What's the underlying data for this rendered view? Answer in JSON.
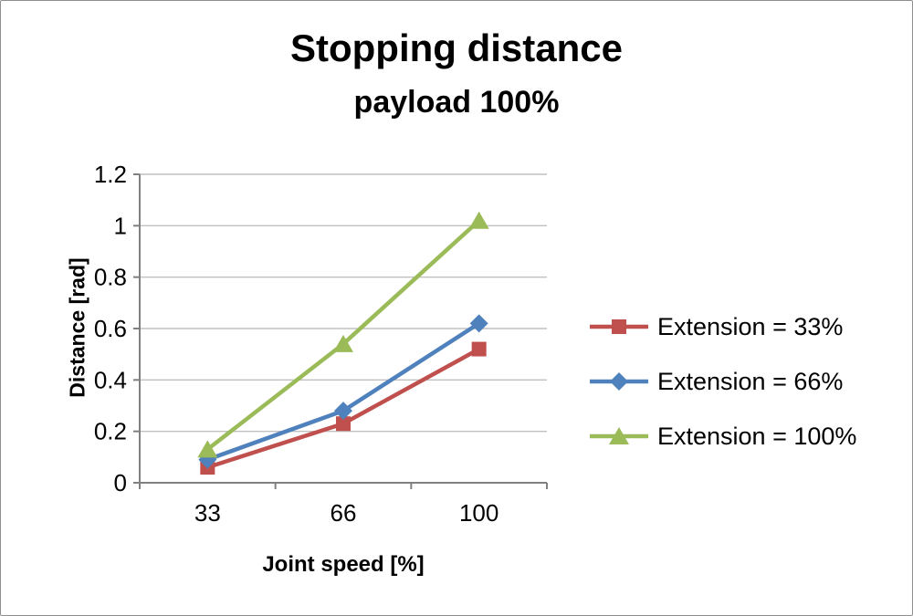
{
  "chart_data": {
    "type": "line",
    "title": "Stopping distance",
    "subtitle": "payload 100%",
    "xlabel": "Joint speed [%]",
    "ylabel": "Distance [rad]",
    "categories": [
      "33",
      "66",
      "100"
    ],
    "ylim": [
      0,
      1.2
    ],
    "ytick_step": 0.2,
    "ytick_labels": [
      "0",
      "0.2",
      "0.4",
      "0.6",
      "0.8",
      "1",
      "1.2"
    ],
    "grid": true,
    "legend_position": "right",
    "axis_color": "#808080",
    "grid_color": "#c0c0c0",
    "series": [
      {
        "name": "Extension = 33%",
        "color": "#c0504d",
        "marker": "square",
        "values": [
          0.06,
          0.23,
          0.52
        ]
      },
      {
        "name": "Extension = 66%",
        "color": "#4f81bd",
        "marker": "diamond",
        "values": [
          0.09,
          0.28,
          0.62
        ]
      },
      {
        "name": "Extension = 100%",
        "color": "#9bbb59",
        "marker": "triangle",
        "values": [
          0.13,
          0.54,
          1.02
        ]
      }
    ]
  }
}
